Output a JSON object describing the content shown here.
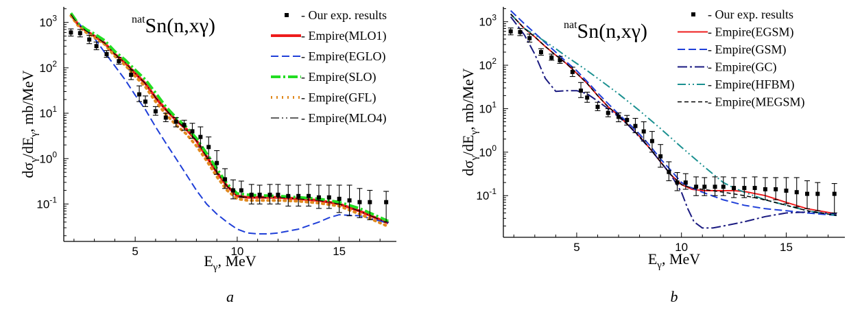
{
  "chart_data": [
    {
      "type": "line",
      "title_sup": "nat",
      "title_main": "Sn(n,xγ)",
      "xlabel_main": "E",
      "xlabel_sub": "γ",
      "xlabel_rest": ", MeV",
      "ylabel_parts": [
        "dσ",
        "γ",
        "/dE",
        "γ",
        ", mb/MeV"
      ],
      "panel_label": "a",
      "x_range": [
        1.5,
        17.8
      ],
      "y_range": [
        0.015,
        2200
      ],
      "y_scale": "log",
      "x_ticks": [
        5,
        10,
        15
      ],
      "x_tick_labels": [
        "5",
        "10",
        "15"
      ],
      "y_ticks": [
        0.1,
        1,
        10,
        100,
        1000
      ],
      "y_tick_labels": [
        "10",
        "10",
        "10",
        "10",
        "10"
      ],
      "y_tick_exps": [
        "-1",
        "0",
        "1",
        "2",
        "3"
      ],
      "legend_position": "top-right",
      "experiment": {
        "name": "- Our exp. results",
        "color": "#000000",
        "x": [
          1.85,
          2.3,
          2.75,
          3.1,
          3.6,
          4.2,
          4.8,
          5.2,
          5.5,
          6.0,
          6.5,
          7.0,
          7.4,
          7.8,
          8.2,
          8.6,
          9.0,
          9.4,
          9.8,
          10.2,
          10.7,
          11.1,
          11.6,
          12.0,
          12.5,
          13.0,
          13.5,
          14.0,
          14.5,
          15.0,
          15.5,
          16.0,
          16.5,
          17.3
        ],
        "y": [
          600,
          580,
          420,
          300,
          200,
          140,
          70,
          26,
          18,
          11,
          8,
          6.5,
          5.5,
          4,
          3,
          1.8,
          0.8,
          0.35,
          0.2,
          0.2,
          0.16,
          0.16,
          0.16,
          0.16,
          0.15,
          0.15,
          0.15,
          0.14,
          0.14,
          0.13,
          0.12,
          0.11,
          0.11,
          0.11
        ],
        "err_lo": [
          500,
          480,
          340,
          250,
          170,
          120,
          55,
          18,
          14,
          9,
          6.5,
          5,
          4.2,
          2.8,
          1.8,
          1,
          0.45,
          0.22,
          0.13,
          0.14,
          0.1,
          0.1,
          0.1,
          0.1,
          0.09,
          0.09,
          0.09,
          0.08,
          0.08,
          0.065,
          0.055,
          0.05,
          0.045,
          0.04
        ],
        "err_hi": [
          720,
          700,
          520,
          370,
          240,
          170,
          90,
          40,
          24,
          14,
          10,
          8,
          7,
          6,
          5,
          3,
          1.5,
          0.6,
          0.34,
          0.32,
          0.27,
          0.26,
          0.27,
          0.27,
          0.26,
          0.26,
          0.27,
          0.26,
          0.26,
          0.26,
          0.26,
          0.22,
          0.2,
          0.19
        ]
      },
      "series": [
        {
          "name": "- Empire(MLO1)",
          "color": "#ee1c1c",
          "style": "solid",
          "width": 4,
          "x": [
            1.85,
            2.2,
            2.6,
            3.0,
            3.5,
            4.0,
            4.5,
            5.0,
            5.5,
            6.0,
            6.5,
            7.0,
            7.5,
            8.0,
            8.5,
            9.0,
            9.5,
            10.0,
            10.5,
            11.0,
            12.0,
            13.0,
            14.0,
            15.0,
            16.0,
            17.4
          ],
          "y": [
            1500,
            900,
            650,
            500,
            350,
            200,
            130,
            75,
            45,
            22,
            12,
            7,
            4.5,
            2.5,
            1.1,
            0.5,
            0.25,
            0.15,
            0.14,
            0.14,
            0.14,
            0.13,
            0.12,
            0.1,
            0.07,
            0.038
          ]
        },
        {
          "name": "- Empire(EGLO)",
          "color": "#1f3fd8",
          "style": "dashed",
          "width": 2,
          "x": [
            1.85,
            2.5,
            3.0,
            3.5,
            4.0,
            4.5,
            5.0,
            5.5,
            6.0,
            6.5,
            7.0,
            7.5,
            8.0,
            8.5,
            9.0,
            9.5,
            10.0,
            10.5,
            11.0,
            11.5,
            12.0,
            13.0,
            14.0,
            14.5,
            15.0,
            16.0,
            17.4
          ],
          "y": [
            1500,
            700,
            450,
            220,
            110,
            55,
            25,
            12,
            5,
            2.2,
            1,
            0.45,
            0.2,
            0.1,
            0.06,
            0.04,
            0.028,
            0.023,
            0.022,
            0.022,
            0.023,
            0.028,
            0.04,
            0.05,
            0.058,
            0.055,
            0.038
          ]
        },
        {
          "name": "- Empire(SLO)",
          "color": "#22dd22",
          "style": "dashdot",
          "width": 4,
          "x": [
            1.85,
            2.2,
            2.6,
            3.0,
            3.5,
            4.0,
            4.5,
            5.0,
            5.5,
            6.0,
            6.5,
            7.0,
            7.5,
            8.0,
            8.5,
            9.0,
            9.5,
            10.0,
            10.5,
            11.0,
            12.0,
            13.0,
            14.0,
            15.0,
            16.0,
            17.4
          ],
          "y": [
            1600,
            950,
            700,
            560,
            400,
            230,
            150,
            90,
            55,
            28,
            14,
            8,
            5,
            2.8,
            1.3,
            0.6,
            0.28,
            0.17,
            0.16,
            0.155,
            0.15,
            0.14,
            0.13,
            0.11,
            0.08,
            0.042
          ]
        },
        {
          "name": "- Empire(GFL)",
          "color": "#e08a20",
          "style": "dotted",
          "width": 4,
          "x": [
            1.85,
            2.2,
            2.6,
            3.0,
            3.5,
            4.0,
            4.5,
            5.0,
            5.5,
            6.0,
            6.5,
            7.0,
            7.5,
            8.0,
            8.5,
            9.0,
            9.5,
            10.0,
            10.5,
            11.0,
            12.0,
            13.0,
            14.0,
            15.0,
            16.0,
            17.4
          ],
          "y": [
            1400,
            850,
            600,
            470,
            330,
            180,
            115,
            65,
            38,
            18,
            9.5,
            5.5,
            3.5,
            1.9,
            0.9,
            0.4,
            0.2,
            0.13,
            0.12,
            0.12,
            0.12,
            0.115,
            0.105,
            0.09,
            0.06,
            0.032
          ]
        },
        {
          "name": "- Empire(MLO4)",
          "color": "#000000",
          "style": "dashdotdot",
          "width": 1.2,
          "x": [
            1.85,
            2.2,
            2.6,
            3.0,
            3.5,
            4.0,
            4.5,
            5.0,
            5.5,
            6.0,
            6.5,
            7.0,
            7.5,
            8.0,
            8.5,
            9.0,
            9.5,
            10.0,
            10.5,
            11.0,
            12.0,
            13.0,
            14.0,
            15.0,
            16.0,
            17.4
          ],
          "y": [
            1500,
            900,
            650,
            500,
            350,
            200,
            130,
            75,
            45,
            22,
            12,
            7,
            4.5,
            2.5,
            1.1,
            0.5,
            0.25,
            0.15,
            0.14,
            0.14,
            0.14,
            0.13,
            0.12,
            0.1,
            0.07,
            0.038
          ]
        }
      ]
    },
    {
      "type": "line",
      "title_sup": "nat",
      "title_main": "Sn(n,xγ)",
      "xlabel_main": "E",
      "xlabel_sub": "γ",
      "xlabel_rest": ", MeV",
      "ylabel_parts": [
        "dσ",
        "γ",
        "/dE",
        "γ",
        ", mb/MeV"
      ],
      "panel_label": "b",
      "x_range": [
        1.5,
        17.8
      ],
      "y_range": [
        0.011,
        2200
      ],
      "y_scale": "log",
      "x_ticks": [
        5,
        10,
        15
      ],
      "x_tick_labels": [
        "5",
        "10",
        "15"
      ],
      "y_ticks": [
        0.1,
        1,
        10,
        100,
        1000
      ],
      "y_tick_labels": [
        "10",
        "10",
        "10",
        "10",
        "10"
      ],
      "y_tick_exps": [
        "-1",
        "0",
        "1",
        "2",
        "3"
      ],
      "legend_position": "top-right",
      "experiment": {
        "name": "- Our exp. results",
        "color": "#000000",
        "x": [
          1.85,
          2.3,
          2.75,
          3.3,
          3.8,
          4.2,
          4.8,
          5.2,
          5.5,
          6.0,
          6.5,
          7.0,
          7.4,
          7.8,
          8.2,
          8.6,
          9.0,
          9.4,
          9.8,
          10.2,
          10.7,
          11.1,
          11.6,
          12.0,
          12.5,
          13.0,
          13.5,
          14.0,
          14.5,
          15.0,
          15.5,
          16.0,
          16.5,
          17.3
        ],
        "y": [
          600,
          580,
          420,
          200,
          150,
          130,
          70,
          26,
          18,
          11,
          8,
          6.5,
          5.5,
          4,
          3,
          1.8,
          0.8,
          0.35,
          0.2,
          0.2,
          0.16,
          0.16,
          0.16,
          0.16,
          0.15,
          0.15,
          0.15,
          0.14,
          0.14,
          0.13,
          0.12,
          0.11,
          0.11,
          0.11
        ],
        "err_lo": [
          500,
          480,
          340,
          170,
          130,
          110,
          55,
          18,
          14,
          9,
          6.5,
          5,
          4.2,
          2.8,
          1.8,
          1,
          0.45,
          0.22,
          0.13,
          0.14,
          0.1,
          0.1,
          0.1,
          0.1,
          0.09,
          0.09,
          0.09,
          0.08,
          0.08,
          0.065,
          0.055,
          0.05,
          0.045,
          0.04
        ],
        "err_hi": [
          720,
          700,
          520,
          240,
          180,
          160,
          90,
          40,
          24,
          14,
          10,
          8,
          7,
          6,
          5,
          3,
          1.5,
          0.6,
          0.34,
          0.32,
          0.27,
          0.26,
          0.27,
          0.27,
          0.26,
          0.26,
          0.27,
          0.26,
          0.26,
          0.26,
          0.26,
          0.22,
          0.2,
          0.19
        ]
      },
      "series": [
        {
          "name": "- Empire(EGSM)",
          "color": "#ee1c1c",
          "style": "solid",
          "width": 2,
          "x": [
            1.85,
            2.5,
            3.0,
            3.5,
            4.0,
            4.5,
            5.0,
            5.5,
            6.0,
            6.5,
            7.0,
            7.5,
            8.0,
            8.5,
            9.0,
            9.5,
            10.0,
            10.5,
            11.0,
            11.5,
            12.0,
            12.5,
            13.0,
            14.0,
            15.0,
            16.0,
            17.4
          ],
          "y": [
            1500,
            700,
            450,
            270,
            170,
            110,
            65,
            38,
            20,
            11,
            7,
            4,
            2.3,
            1.2,
            0.6,
            0.3,
            0.18,
            0.14,
            0.13,
            0.13,
            0.13,
            0.13,
            0.125,
            0.1,
            0.07,
            0.05,
            0.038
          ]
        },
        {
          "name": "- Empire(GSM)",
          "color": "#1f3fd8",
          "style": "dashed",
          "width": 2,
          "x": [
            1.85,
            2.5,
            3.0,
            3.5,
            4.0,
            4.5,
            5.0,
            5.5,
            6.0,
            6.5,
            7.0,
            7.5,
            8.0,
            8.5,
            9.0,
            9.5,
            10.0,
            10.5,
            11.0,
            12.0,
            13.0,
            14.0,
            15.0,
            16.0,
            17.4
          ],
          "y": [
            1800,
            900,
            550,
            330,
            200,
            120,
            75,
            42,
            23,
            13,
            7.5,
            4.5,
            2.6,
            1.4,
            0.7,
            0.38,
            0.2,
            0.15,
            0.12,
            0.08,
            0.06,
            0.05,
            0.045,
            0.04,
            0.035
          ]
        },
        {
          "name": "- Empire(GC)",
          "color": "#1a1a80",
          "style": "dashdot",
          "width": 2,
          "x": [
            1.85,
            2.5,
            3.0,
            3.5,
            4.0,
            4.5,
            5.0,
            5.5,
            6.0,
            6.5,
            7.0,
            7.5,
            8.0,
            8.5,
            9.0,
            9.5,
            10.0,
            10.3,
            10.6,
            11.0,
            11.5,
            12.0,
            13.0,
            14.0,
            15.0,
            16.0,
            17.4
          ],
          "y": [
            1300,
            500,
            180,
            50,
            25,
            26,
            26,
            22,
            15,
            10,
            6.5,
            4,
            2.2,
            1.2,
            0.6,
            0.3,
            0.12,
            0.05,
            0.025,
            0.018,
            0.018,
            0.02,
            0.025,
            0.033,
            0.04,
            0.042,
            0.038
          ]
        },
        {
          "name": "- Empire(HFBM)",
          "color": "#1a9090",
          "style": "dashdotdot",
          "width": 2,
          "x": [
            1.85,
            2.5,
            3.0,
            3.5,
            4.0,
            4.5,
            5.0,
            5.5,
            6.0,
            7.0,
            8.0,
            9.0,
            10.0,
            11.0,
            12.0,
            12.5,
            13.0,
            14.0,
            15.0,
            16.0,
            17.4
          ],
          "y": [
            1500,
            700,
            500,
            350,
            240,
            160,
            110,
            75,
            50,
            22,
            9,
            3.5,
            1.3,
            0.5,
            0.2,
            0.15,
            0.12,
            0.08,
            0.06,
            0.045,
            0.035
          ]
        },
        {
          "name": "- Empire(MEGSM)",
          "color": "#000000",
          "style": "shortdash",
          "width": 1.5,
          "x": [
            1.85,
            2.5,
            3.0,
            3.5,
            4.0,
            4.5,
            5.0,
            5.5,
            6.0,
            6.5,
            7.0,
            7.5,
            8.0,
            8.5,
            9.0,
            9.5,
            10.0,
            10.5,
            11.0,
            12.0,
            13.0,
            14.0,
            15.0,
            16.0,
            17.4
          ],
          "y": [
            1500,
            700,
            450,
            270,
            170,
            110,
            65,
            38,
            20,
            11,
            7,
            4,
            2.3,
            1.2,
            0.6,
            0.3,
            0.18,
            0.15,
            0.14,
            0.12,
            0.1,
            0.08,
            0.06,
            0.045,
            0.035
          ]
        }
      ]
    }
  ]
}
